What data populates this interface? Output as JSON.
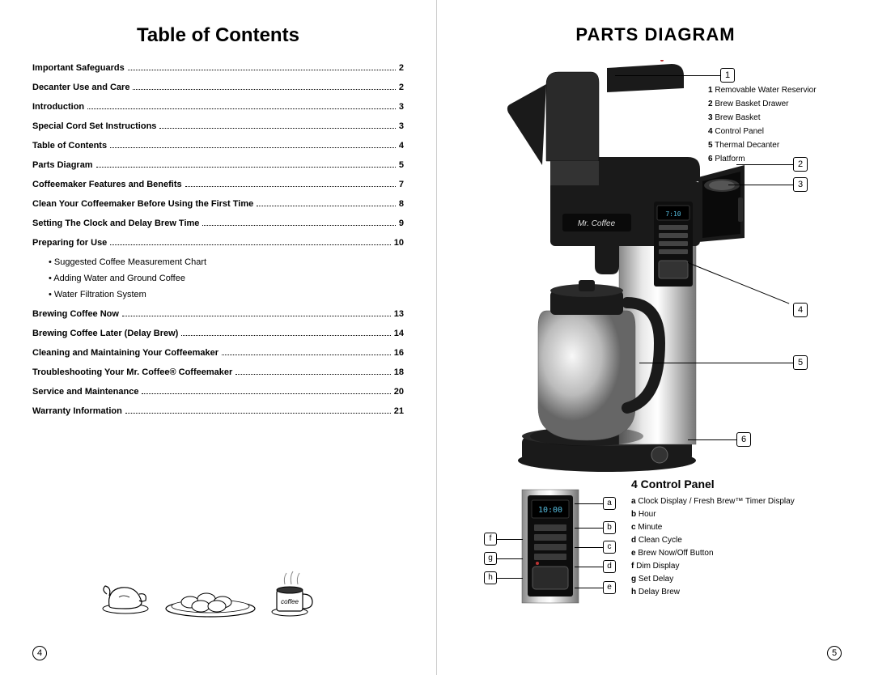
{
  "left": {
    "title": "Table of Contents",
    "toc": [
      {
        "label": "Important Safeguards",
        "page": "2"
      },
      {
        "label": "Decanter Use and Care",
        "page": "2"
      },
      {
        "label": "Introduction",
        "page": "3"
      },
      {
        "label": "Special Cord Set Instructions",
        "page": "3"
      },
      {
        "label": "Table of Contents",
        "page": "4"
      },
      {
        "label": "Parts Diagram",
        "page": "5"
      },
      {
        "label": "Coffeemaker Features and Benefits",
        "page": "7"
      },
      {
        "label": "Clean Your Coffeemaker Before Using the First Time",
        "page": "8"
      },
      {
        "label": "Setting The Clock and Delay Brew Time",
        "page": "9"
      },
      {
        "label": "Preparing for Use",
        "page": "10"
      }
    ],
    "subs": [
      "• Suggested Coffee Measurement Chart",
      "• Adding Water and Ground Coffee",
      "• Water Filtration System"
    ],
    "toc2": [
      {
        "label": "Brewing Coffee Now",
        "page": "13"
      },
      {
        "label": "Brewing Coffee Later (Delay Brew)",
        "page": "14"
      },
      {
        "label": "Cleaning and Maintaining Your Coffeemaker",
        "page": "16"
      },
      {
        "label": "Troubleshooting Your Mr. Coffee® Coffeemaker",
        "page": "18"
      },
      {
        "label": "Service and Maintenance",
        "page": "20"
      },
      {
        "label": "Warranty Information",
        "page": "21"
      }
    ],
    "page_number": "4",
    "mug_label": "coffee"
  },
  "right": {
    "title": "PARTS DIAGRAM",
    "callouts": [
      "1",
      "2",
      "3",
      "4",
      "5",
      "6"
    ],
    "legend": [
      {
        "n": "1",
        "t": "Removable Water Reservior"
      },
      {
        "n": "2",
        "t": "Brew Basket Drawer"
      },
      {
        "n": "3",
        "t": "Brew Basket"
      },
      {
        "n": "4",
        "t": "Control Panel"
      },
      {
        "n": "5",
        "t": "Thermal Decanter"
      },
      {
        "n": "6",
        "t": "Platform"
      }
    ],
    "cp_title": "4 Control Panel",
    "cp_callouts_left": [
      "f",
      "g",
      "h"
    ],
    "cp_callouts_right": [
      "a",
      "b",
      "c",
      "d",
      "e"
    ],
    "cp_legend": [
      {
        "n": "a",
        "t": "Clock Display / Fresh Brew™ Timer Display"
      },
      {
        "n": "b",
        "t": "Hour"
      },
      {
        "n": "c",
        "t": "Minute"
      },
      {
        "n": "d",
        "t": "Clean Cycle"
      },
      {
        "n": "e",
        "t": "Brew Now/Off Button"
      },
      {
        "n": "f",
        "t": "Dim Display"
      },
      {
        "n": "g",
        "t": "Set Delay"
      },
      {
        "n": "h",
        "t": "Delay Brew"
      }
    ],
    "page_number": "5",
    "brand": "Mr. Coffee",
    "clock": "7:10",
    "cp_clock": "10:00"
  },
  "colors": {
    "black": "#1a1a1a",
    "steel": "#b8b8b8",
    "steel_dark": "#888888",
    "panel_dark": "#2a2a2a"
  }
}
